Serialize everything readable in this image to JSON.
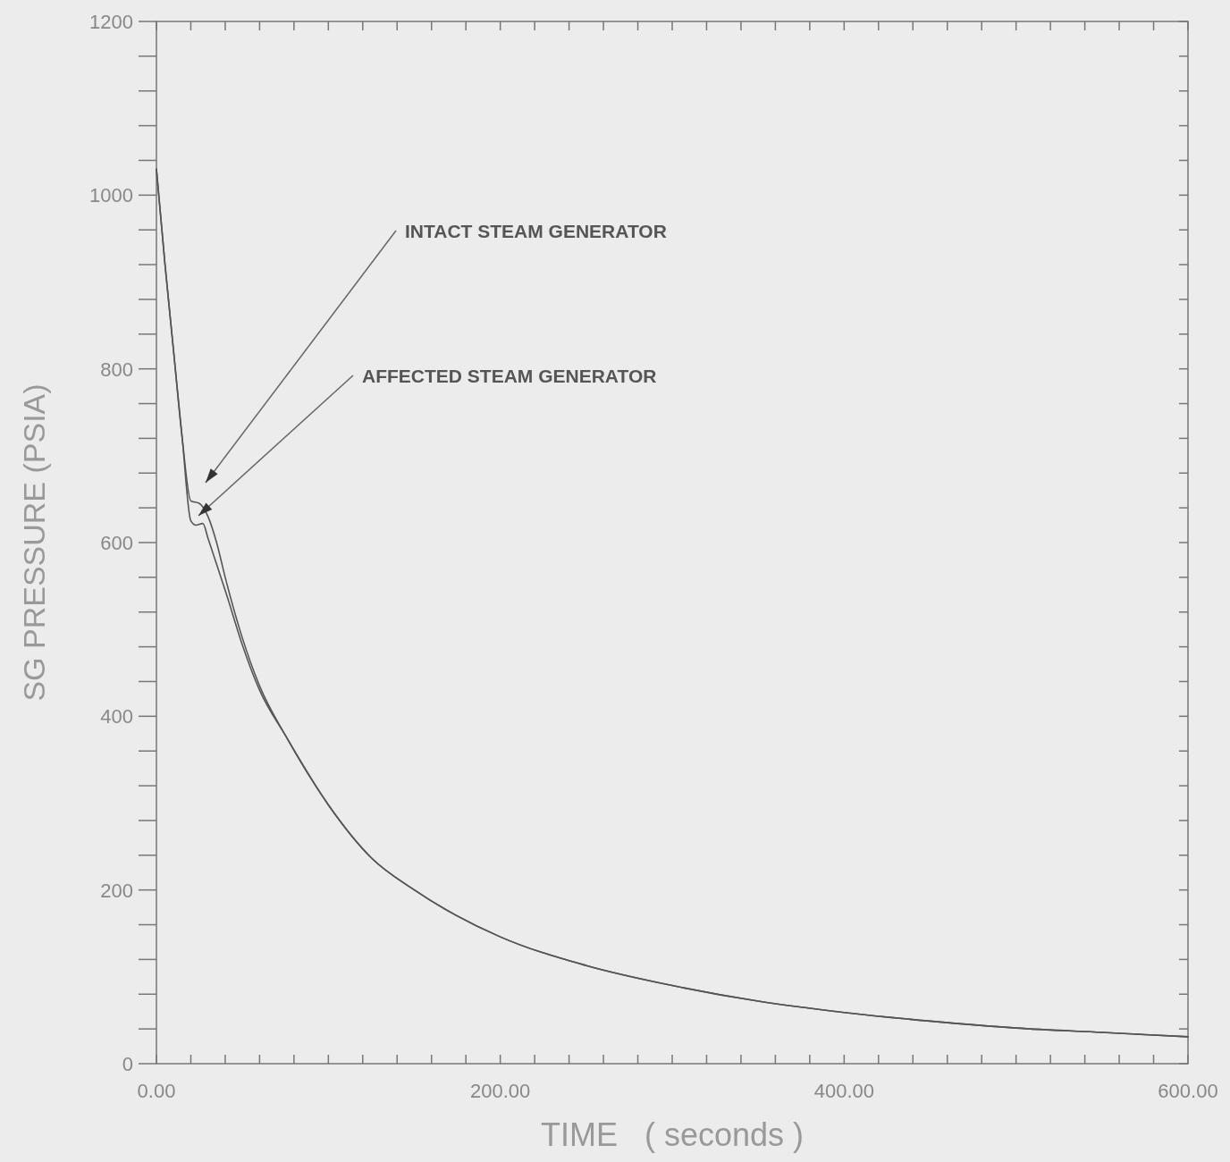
{
  "chart_data": {
    "type": "line",
    "xlabel": "TIME   ( seconds )",
    "ylabel": "SG PRESSURE (PSIA)",
    "xlim": [
      0,
      600
    ],
    "ylim": [
      0,
      1200
    ],
    "xticks": [
      {
        "value": 0,
        "label": "0.00"
      },
      {
        "value": 20,
        "label": null
      },
      {
        "value": 40,
        "label": null
      },
      {
        "value": 60,
        "label": null
      },
      {
        "value": 80,
        "label": null
      },
      {
        "value": 100,
        "label": null
      },
      {
        "value": 120,
        "label": null
      },
      {
        "value": 140,
        "label": null
      },
      {
        "value": 160,
        "label": null
      },
      {
        "value": 180,
        "label": null
      },
      {
        "value": 200,
        "label": "200.00"
      },
      {
        "value": 220,
        "label": null
      },
      {
        "value": 240,
        "label": null
      },
      {
        "value": 260,
        "label": null
      },
      {
        "value": 280,
        "label": null
      },
      {
        "value": 300,
        "label": null
      },
      {
        "value": 320,
        "label": null
      },
      {
        "value": 340,
        "label": null
      },
      {
        "value": 360,
        "label": null
      },
      {
        "value": 380,
        "label": null
      },
      {
        "value": 400,
        "label": "400.00"
      },
      {
        "value": 420,
        "label": null
      },
      {
        "value": 440,
        "label": null
      },
      {
        "value": 460,
        "label": null
      },
      {
        "value": 480,
        "label": null
      },
      {
        "value": 500,
        "label": null
      },
      {
        "value": 520,
        "label": null
      },
      {
        "value": 540,
        "label": null
      },
      {
        "value": 560,
        "label": null
      },
      {
        "value": 580,
        "label": null
      },
      {
        "value": 600,
        "label": "600.00"
      }
    ],
    "yticks": [
      0,
      {
        "value": 40,
        "label": null
      },
      {
        "value": 80,
        "label": null
      },
      {
        "value": 120,
        "label": null
      },
      {
        "value": 160,
        "label": null
      },
      200,
      {
        "value": 240,
        "label": null
      },
      {
        "value": 280,
        "label": null
      },
      {
        "value": 320,
        "label": null
      },
      {
        "value": 360,
        "label": null
      },
      400,
      {
        "value": 440,
        "label": null
      },
      {
        "value": 480,
        "label": null
      },
      {
        "value": 520,
        "label": null
      },
      {
        "value": 560,
        "label": null
      },
      600,
      {
        "value": 640,
        "label": null
      },
      {
        "value": 680,
        "label": null
      },
      {
        "value": 720,
        "label": null
      },
      {
        "value": 760,
        "label": null
      },
      800,
      {
        "value": 840,
        "label": null
      },
      {
        "value": 880,
        "label": null
      },
      {
        "value": 920,
        "label": null
      },
      {
        "value": 960,
        "label": null
      },
      1000,
      {
        "value": 1040,
        "label": null
      },
      {
        "value": 1080,
        "label": null
      },
      {
        "value": 1120,
        "label": null
      },
      {
        "value": 1160,
        "label": null
      },
      1200
    ],
    "grid": false,
    "line_style": "solid",
    "series": [
      {
        "color": "#555555",
        "x": [
          0,
          5,
          10,
          15,
          20,
          25,
          30,
          35,
          40,
          50,
          60,
          75,
          100,
          125,
          150,
          200,
          250,
          300,
          350,
          400,
          450,
          500,
          550,
          600
        ],
        "values": [
          1030,
          920,
          820,
          720,
          648,
          645,
          630,
          600,
          560,
          490,
          435,
          378,
          298,
          237,
          200,
          146,
          113,
          90,
          72,
          59,
          49,
          41,
          36,
          31
        ]
      },
      {
        "color": "#555555",
        "x": [
          0,
          5,
          10,
          15,
          20,
          23,
          27,
          30,
          35,
          40,
          50,
          60,
          75,
          100,
          125,
          150,
          200,
          250,
          300,
          350,
          400,
          450,
          500,
          550,
          600
        ],
        "values": [
          1030,
          920,
          820,
          720,
          625,
          620,
          622,
          605,
          575,
          545,
          482,
          430,
          378,
          298,
          237,
          200,
          146,
          113,
          90,
          72,
          59,
          49,
          41,
          36,
          31
        ]
      }
    ],
    "annotations": [
      "INTACT STEAM GENERATOR",
      "AFFECTED STEAM GENERATOR"
    ]
  }
}
